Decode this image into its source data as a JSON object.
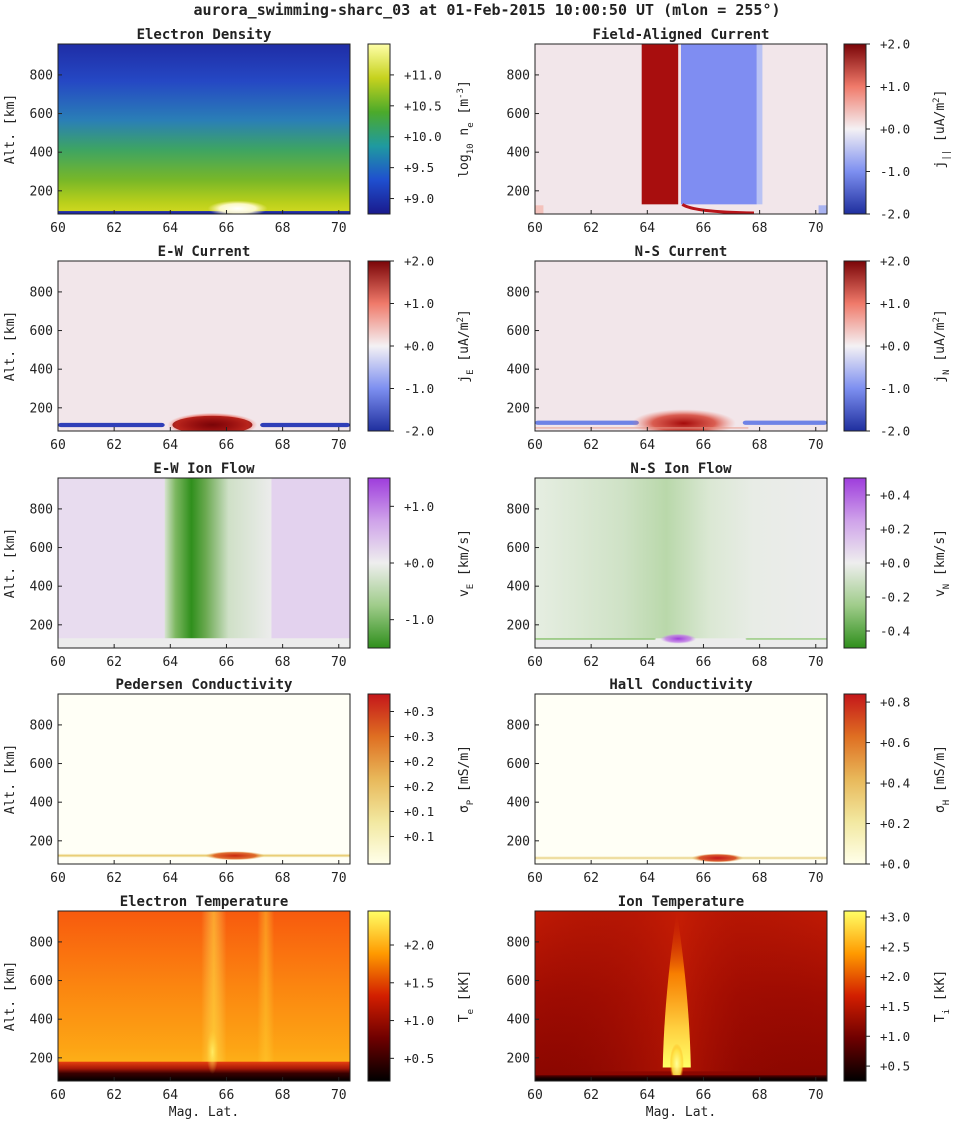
{
  "figure": {
    "title": "aurora_swimming-sharc_03 at 01-Feb-2015 10:00:50 UT (mlon = 255°)"
  },
  "colors": {
    "background": "#ffffff",
    "axis": "#222222"
  },
  "chart_data": [
    {
      "type": "heatmap",
      "id": "electron-density",
      "title": "Electron Density",
      "ylabel": "Alt. [km]",
      "xlabel": "",
      "xticks": [
        "60",
        "62",
        "64",
        "66",
        "68",
        "70"
      ],
      "yticks": [
        "200",
        "400",
        "600",
        "800"
      ],
      "xlim": [
        60,
        70.4
      ],
      "ylim": [
        80,
        960
      ],
      "colormap": "density",
      "cbar_label": "log10 ne [m^-3]",
      "cbar_label_parts": [
        "log",
        "10",
        " n",
        "e",
        " [m",
        "-3",
        "]"
      ],
      "cbar_ticks": [
        "+9.0",
        "+9.5",
        "+10.0",
        "+10.5",
        "+11.0"
      ],
      "cbar_tick_values": [
        9.0,
        9.5,
        10.0,
        10.5,
        11.0
      ],
      "cbar_range": [
        8.75,
        11.5
      ]
    },
    {
      "type": "heatmap",
      "id": "field-aligned-current",
      "title": "Field-Aligned Current",
      "ylabel": "",
      "xlabel": "",
      "xticks": [
        "60",
        "62",
        "64",
        "66",
        "68",
        "70"
      ],
      "yticks": [
        "200",
        "400",
        "600",
        "800"
      ],
      "xlim": [
        60,
        70.4
      ],
      "ylim": [
        80,
        960
      ],
      "colormap": "diverging-red-blue",
      "cbar_label": "j|| [uA/m^2]",
      "cbar_label_parts": [
        "j",
        "||",
        " [uA/m",
        "2",
        "]"
      ],
      "cbar_ticks": [
        "-2.0",
        "-1.0",
        "+0.0",
        "+1.0",
        "+2.0"
      ],
      "cbar_tick_values": [
        -2.0,
        -1.0,
        0.0,
        1.0,
        2.0
      ],
      "cbar_range": [
        -2.0,
        2.0
      ]
    },
    {
      "type": "heatmap",
      "id": "ew-current",
      "title": "E-W Current",
      "ylabel": "Alt. [km]",
      "xlabel": "",
      "xticks": [
        "60",
        "62",
        "64",
        "66",
        "68",
        "70"
      ],
      "yticks": [
        "200",
        "400",
        "600",
        "800"
      ],
      "xlim": [
        60,
        70.4
      ],
      "ylim": [
        80,
        960
      ],
      "colormap": "diverging-red-blue",
      "cbar_label": "jE [uA/m^2]",
      "cbar_label_parts": [
        "j",
        "E",
        " [uA/m",
        "2",
        "]"
      ],
      "cbar_ticks": [
        "-2.0",
        "-1.0",
        "+0.0",
        "+1.0",
        "+2.0"
      ],
      "cbar_tick_values": [
        -2.0,
        -1.0,
        0.0,
        1.0,
        2.0
      ],
      "cbar_range": [
        -2.0,
        2.0
      ]
    },
    {
      "type": "heatmap",
      "id": "ns-current",
      "title": "N-S Current",
      "ylabel": "",
      "xlabel": "",
      "xticks": [
        "60",
        "62",
        "64",
        "66",
        "68",
        "70"
      ],
      "yticks": [
        "200",
        "400",
        "600",
        "800"
      ],
      "xlim": [
        60,
        70.4
      ],
      "ylim": [
        80,
        960
      ],
      "colormap": "diverging-red-blue",
      "cbar_label": "jN [uA/m^2]",
      "cbar_label_parts": [
        "j",
        "N",
        " [uA/m",
        "2",
        "]"
      ],
      "cbar_ticks": [
        "-2.0",
        "-1.0",
        "+0.0",
        "+1.0",
        "+2.0"
      ],
      "cbar_tick_values": [
        -2.0,
        -1.0,
        0.0,
        1.0,
        2.0
      ],
      "cbar_range": [
        -2.0,
        2.0
      ]
    },
    {
      "type": "heatmap",
      "id": "ew-ion-flow",
      "title": "E-W Ion Flow",
      "ylabel": "Alt. [km]",
      "xlabel": "",
      "xticks": [
        "60",
        "62",
        "64",
        "66",
        "68",
        "70"
      ],
      "yticks": [
        "200",
        "400",
        "600",
        "800"
      ],
      "xlim": [
        60,
        70.4
      ],
      "ylim": [
        80,
        960
      ],
      "colormap": "diverging-purple-green",
      "cbar_label": "vE [km/s]",
      "cbar_label_parts": [
        "v",
        "E",
        " [km/s]"
      ],
      "cbar_ticks": [
        "-1.0",
        "+0.0",
        "+1.0"
      ],
      "cbar_tick_values": [
        -1.0,
        0.0,
        1.0
      ],
      "cbar_range": [
        -1.5,
        1.5
      ]
    },
    {
      "type": "heatmap",
      "id": "ns-ion-flow",
      "title": "N-S Ion Flow",
      "ylabel": "",
      "xlabel": "",
      "xticks": [
        "60",
        "62",
        "64",
        "66",
        "68",
        "70"
      ],
      "yticks": [
        "200",
        "400",
        "600",
        "800"
      ],
      "xlim": [
        60,
        70.4
      ],
      "ylim": [
        80,
        960
      ],
      "colormap": "diverging-purple-green",
      "cbar_label": "vN [km/s]",
      "cbar_label_parts": [
        "v",
        "N",
        " [km/s]"
      ],
      "cbar_ticks": [
        "-0.4",
        "-0.2",
        "+0.0",
        "+0.2",
        "+0.4"
      ],
      "cbar_tick_values": [
        -0.4,
        -0.2,
        0.0,
        0.2,
        0.4
      ],
      "cbar_range": [
        -0.5,
        0.5
      ]
    },
    {
      "type": "heatmap",
      "id": "pedersen-conductivity",
      "title": "Pedersen Conductivity",
      "ylabel": "Alt. [km]",
      "xlabel": "",
      "xticks": [
        "60",
        "62",
        "64",
        "66",
        "68",
        "70"
      ],
      "yticks": [
        "200",
        "400",
        "600",
        "800"
      ],
      "xlim": [
        60,
        70.4
      ],
      "ylim": [
        80,
        960
      ],
      "colormap": "conductivity",
      "cbar_label": "σP [mS/m]",
      "cbar_label_parts": [
        "σ",
        "P",
        " [mS/m]"
      ],
      "cbar_ticks": [
        "+0.1",
        "+0.1",
        "+0.2",
        "+0.2",
        "+0.3",
        "+0.3"
      ],
      "cbar_tick_values": [
        0.075,
        0.125,
        0.175,
        0.225,
        0.275,
        0.325
      ],
      "cbar_range": [
        0.02,
        0.36
      ]
    },
    {
      "type": "heatmap",
      "id": "hall-conductivity",
      "title": "Hall Conductivity",
      "ylabel": "",
      "xlabel": "",
      "xticks": [
        "60",
        "62",
        "64",
        "66",
        "68",
        "70"
      ],
      "yticks": [
        "200",
        "400",
        "600",
        "800"
      ],
      "xlim": [
        60,
        70.4
      ],
      "ylim": [
        80,
        960
      ],
      "colormap": "conductivity",
      "cbar_label": "σH [mS/m]",
      "cbar_label_parts": [
        "σ",
        "H",
        " [mS/m]"
      ],
      "cbar_ticks": [
        "+0.0",
        "+0.2",
        "+0.4",
        "+0.6",
        "+0.8"
      ],
      "cbar_tick_values": [
        0.0,
        0.2,
        0.4,
        0.6,
        0.8
      ],
      "cbar_range": [
        0.0,
        0.84
      ]
    },
    {
      "type": "heatmap",
      "id": "electron-temperature",
      "title": "Electron Temperature",
      "ylabel": "Alt. [km]",
      "xlabel": "Mag. Lat.",
      "xticks": [
        "60",
        "62",
        "64",
        "66",
        "68",
        "70"
      ],
      "yticks": [
        "200",
        "400",
        "600",
        "800"
      ],
      "xlim": [
        60,
        70.4
      ],
      "ylim": [
        80,
        960
      ],
      "colormap": "thermal",
      "cbar_label": "Te [kK]",
      "cbar_label_parts": [
        "T",
        "e",
        " [kK]"
      ],
      "cbar_ticks": [
        "+0.5",
        "+1.0",
        "+1.5",
        "+2.0"
      ],
      "cbar_tick_values": [
        0.5,
        1.0,
        1.5,
        2.0
      ],
      "cbar_range": [
        0.2,
        2.45
      ]
    },
    {
      "type": "heatmap",
      "id": "ion-temperature",
      "title": "Ion Temperature",
      "ylabel": "",
      "xlabel": "Mag. Lat.",
      "xticks": [
        "60",
        "62",
        "64",
        "66",
        "68",
        "70"
      ],
      "yticks": [
        "200",
        "400",
        "600",
        "800"
      ],
      "xlim": [
        60,
        70.4
      ],
      "ylim": [
        80,
        960
      ],
      "colormap": "thermal",
      "cbar_label": "Ti [kK]",
      "cbar_label_parts": [
        "T",
        "i",
        " [kK]"
      ],
      "cbar_ticks": [
        "+0.5",
        "+1.0",
        "+1.5",
        "+2.0",
        "+2.5",
        "+3.0"
      ],
      "cbar_tick_values": [
        0.5,
        1.0,
        1.5,
        2.0,
        2.5,
        3.0
      ],
      "cbar_range": [
        0.25,
        3.1
      ]
    }
  ]
}
